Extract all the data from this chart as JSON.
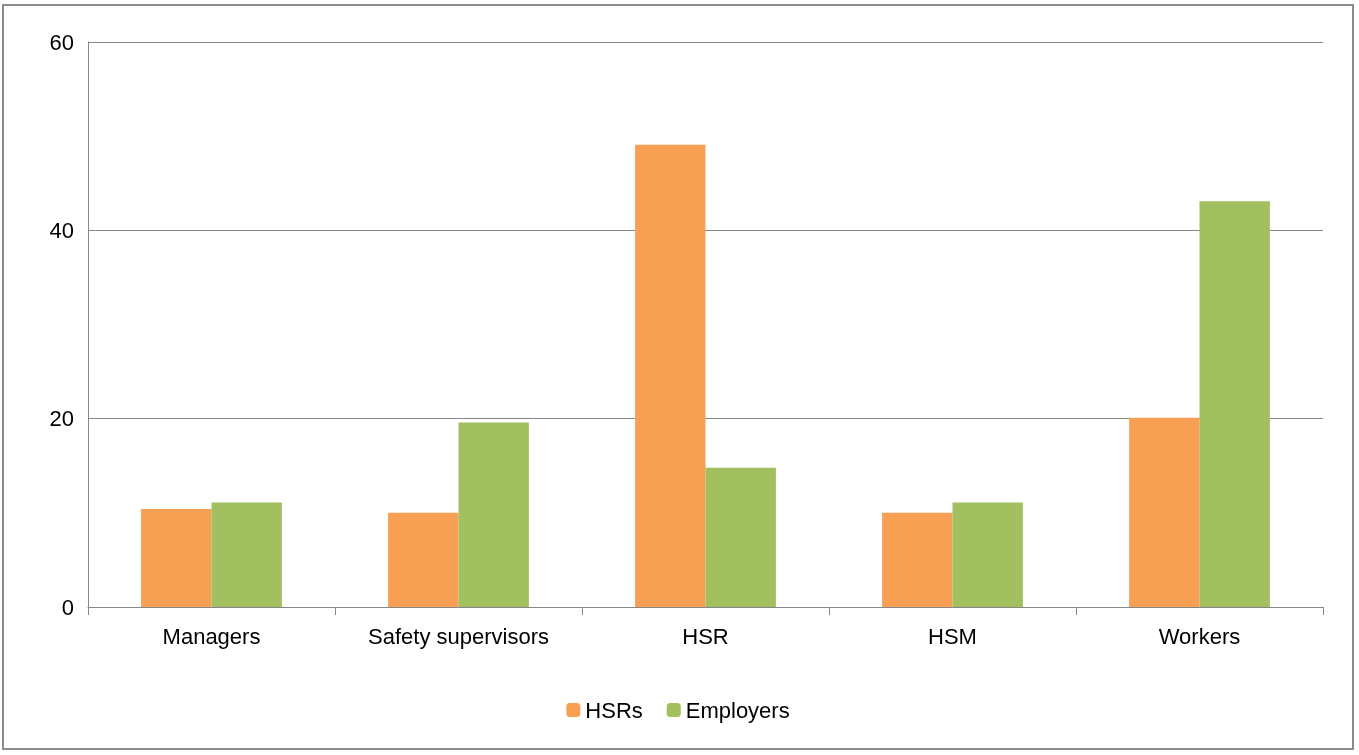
{
  "chart_data": {
    "type": "bar",
    "categories": [
      "Managers",
      "Safety supervisors",
      "HSR",
      "HSM",
      "Workers"
    ],
    "series": [
      {
        "name": "HSRs",
        "color": "#f79f52",
        "values": [
          10.4,
          10,
          49.1,
          10,
          20.1
        ]
      },
      {
        "name": "Employers",
        "color": "#a2c05f",
        "values": [
          11.1,
          19.6,
          14.8,
          11.1,
          43.1
        ]
      }
    ],
    "ylim": [
      0,
      60
    ],
    "yticks": [
      0,
      20,
      40,
      60
    ],
    "grid": "y",
    "legend": "bottom"
  }
}
